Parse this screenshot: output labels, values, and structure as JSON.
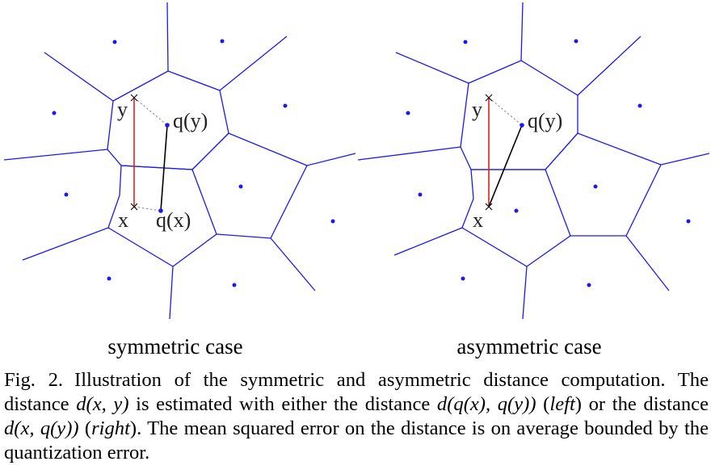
{
  "figure": {
    "left_panel": {
      "label": "symmetric case",
      "x_label": "x",
      "y_label": "y",
      "qx_label": "q(x)",
      "qy_label": "q(y)"
    },
    "right_panel": {
      "label": "asymmetric case",
      "x_label": "x",
      "y_label": "y",
      "qy_label": "q(y)"
    },
    "colors": {
      "cell_edges": "#1a1aee",
      "centroids": "#1a1aee",
      "true_distance": "#e02020",
      "estimated_distance": "#000000",
      "dashed_connector": "#888888"
    }
  },
  "caption": {
    "figure_number": "Fig. 2.",
    "segments": [
      {
        "text": "Illustration of the symmetric and asymmetric distance computation. The distance ",
        "italic": false
      },
      {
        "text": "d(x, y)",
        "italic": true
      },
      {
        "text": " is estimated with either the distance ",
        "italic": false
      },
      {
        "text": "d(q(x), q(y))",
        "italic": true
      },
      {
        "text": " (",
        "italic": false
      },
      {
        "text": "left",
        "italic": true
      },
      {
        "text": ") or the distance ",
        "italic": false
      },
      {
        "text": "d(x, q(y))",
        "italic": true
      },
      {
        "text": " (",
        "italic": false
      },
      {
        "text": "right",
        "italic": true
      },
      {
        "text": "). The mean squared error on the distance is on average bounded by the quantization error.",
        "italic": false
      }
    ]
  }
}
